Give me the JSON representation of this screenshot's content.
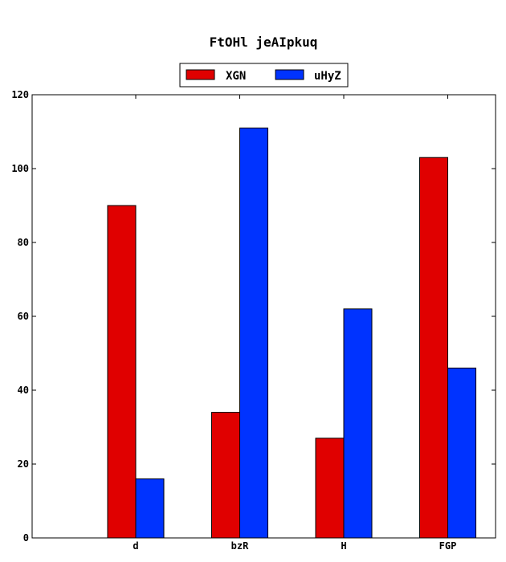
{
  "chart_data": {
    "type": "bar",
    "title": "FtOHl jeAIpkuq",
    "xlabel": "",
    "ylabel": "",
    "categories": [
      "d",
      "bzR",
      "H",
      "FGP"
    ],
    "series": [
      {
        "name": "XGN",
        "color": "#e00000",
        "values": [
          90,
          34,
          27,
          103
        ]
      },
      {
        "name": "uHyZ",
        "color": "#0033ff",
        "values": [
          16,
          111,
          62,
          46
        ]
      }
    ],
    "ylim": [
      0,
      120
    ],
    "yticks": [
      0,
      20,
      40,
      60,
      80,
      100,
      120
    ],
    "grid": false,
    "legend_position": "top-center"
  }
}
